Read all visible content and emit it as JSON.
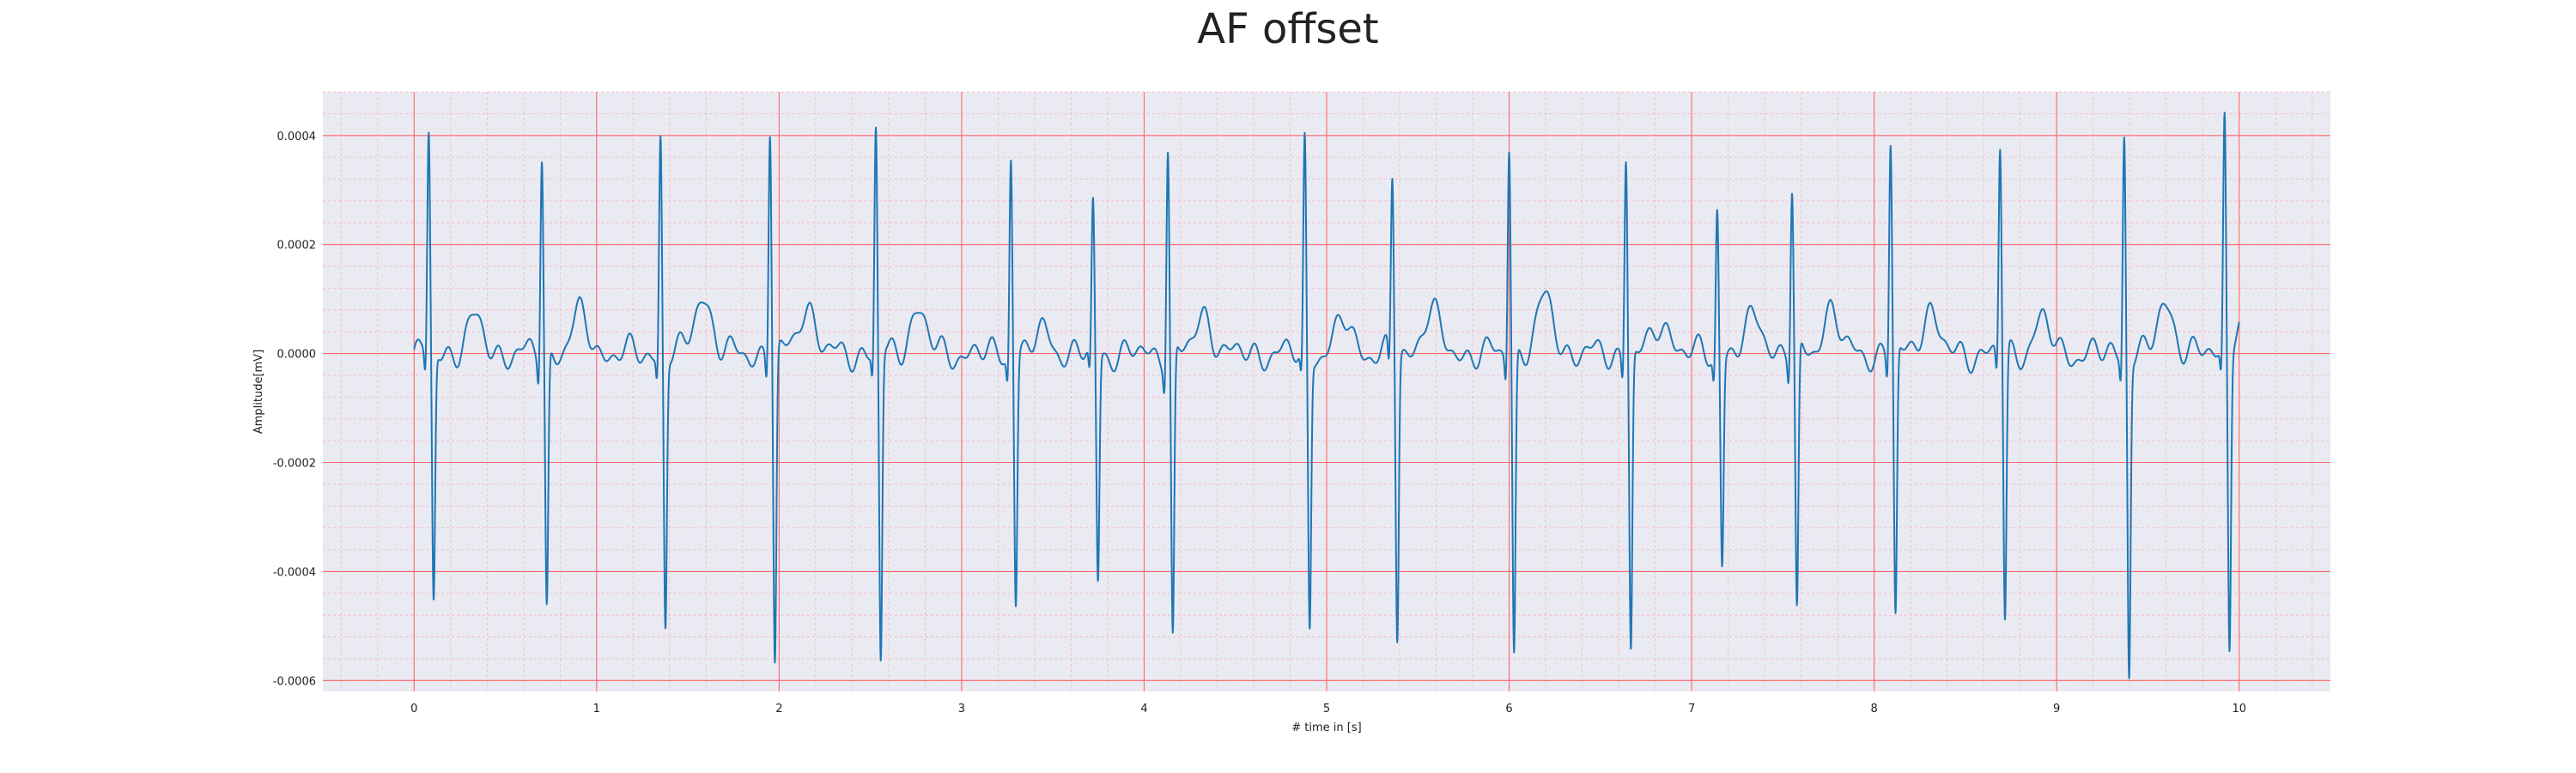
{
  "chart_data": {
    "type": "line",
    "title": "AF offset",
    "xlabel": "# time in [s]",
    "ylabel": "Amplitude[mV]",
    "xlim": [
      -0.5,
      10.5
    ],
    "ylim": [
      -0.00062,
      0.00048
    ],
    "x_ticks": [
      0,
      1,
      2,
      3,
      4,
      5,
      6,
      7,
      8,
      9,
      10
    ],
    "x_tick_labels": [
      "0",
      "1",
      "2",
      "3",
      "4",
      "5",
      "6",
      "7",
      "8",
      "9",
      "10"
    ],
    "y_ticks": [
      -0.0006,
      -0.0004,
      -0.0002,
      0.0,
      0.0002,
      0.0004
    ],
    "y_tick_labels": [
      "-0.0006",
      "-0.0004",
      "-0.0002",
      "0.0000",
      "0.0002",
      "0.0004"
    ],
    "grid": true,
    "colors": {
      "plot_background": "#eaeaf2",
      "major_grid": "#ff6666",
      "minor_grid": "#f6b3b8",
      "line": "#1f77b4"
    },
    "series": [
      {
        "r_peaks": [
          {
            "t": 0.08,
            "peak": 0.0004,
            "trough": -0.00046
          },
          {
            "t": 0.7,
            "peak": 0.00037,
            "trough": -0.00047
          },
          {
            "t": 1.35,
            "peak": 0.0004,
            "trough": -0.0005
          },
          {
            "t": 1.95,
            "peak": 0.00042,
            "trough": -0.00057
          },
          {
            "t": 2.53,
            "peak": 0.00041,
            "trough": -0.00057
          },
          {
            "t": 3.27,
            "peak": 0.00037,
            "trough": -0.00045
          },
          {
            "t": 3.72,
            "peak": 0.00027,
            "trough": -0.00042
          },
          {
            "t": 4.13,
            "peak": 0.00039,
            "trough": -0.00053
          },
          {
            "t": 4.88,
            "peak": 0.00039,
            "trough": -0.0005
          },
          {
            "t": 5.36,
            "peak": 0.00032,
            "trough": -0.00052
          },
          {
            "t": 6.0,
            "peak": 0.00039,
            "trough": -0.00055
          },
          {
            "t": 6.64,
            "peak": 0.00037,
            "trough": -0.00054
          },
          {
            "t": 7.14,
            "peak": 0.00027,
            "trough": -0.00038
          },
          {
            "t": 7.55,
            "peak": 0.0003,
            "trough": -0.00049
          },
          {
            "t": 8.09,
            "peak": 0.00039,
            "trough": -0.00049
          },
          {
            "t": 8.69,
            "peak": 0.00038,
            "trough": -0.00049
          },
          {
            "t": 9.37,
            "peak": 0.00041,
            "trough": -0.00058
          },
          {
            "t": 9.92,
            "peak": 0.00043,
            "trough": -0.00055
          }
        ],
        "t_waves": [
          {
            "t": 0.33,
            "amp": 6e-05
          },
          {
            "t": 0.91,
            "amp": 7e-05
          },
          {
            "t": 1.58,
            "amp": 0.00011
          },
          {
            "t": 2.15,
            "amp": 9e-05
          },
          {
            "t": 2.76,
            "amp": 8e-05
          },
          {
            "t": 3.45,
            "amp": 4e-05
          },
          {
            "t": 4.33,
            "amp": 7e-05
          },
          {
            "t": 5.1,
            "amp": 6e-05
          },
          {
            "t": 5.57,
            "amp": 8e-05
          },
          {
            "t": 6.2,
            "amp": 0.0001
          },
          {
            "t": 6.84,
            "amp": 6e-05
          },
          {
            "t": 7.35,
            "amp": 7e-05
          },
          {
            "t": 7.76,
            "amp": 8e-05
          },
          {
            "t": 8.3,
            "amp": 8e-05
          },
          {
            "t": 8.92,
            "amp": 6e-05
          },
          {
            "t": 9.6,
            "amp": 9e-05
          },
          {
            "t": 10.0,
            "amp": 5e-05
          }
        ],
        "start_x": 0.0,
        "end_x": 10.0
      }
    ]
  }
}
